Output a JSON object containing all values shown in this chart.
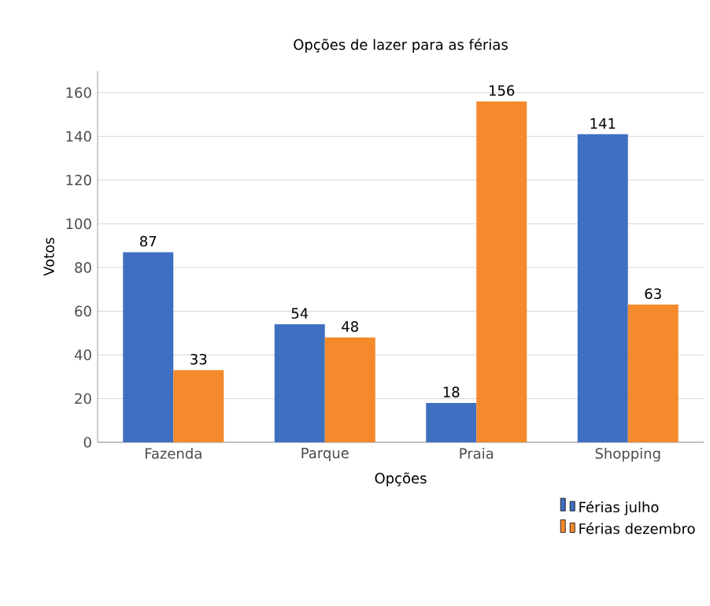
{
  "chart_data": {
    "type": "bar",
    "title": "Opções de lazer para as férias",
    "xlabel": "Opções",
    "ylabel": "Votos",
    "categories": [
      "Fazenda",
      "Parque",
      "Praia",
      "Shopping"
    ],
    "series": [
      {
        "name": "Férias julho",
        "color": "#3f6fc0",
        "values": [
          87,
          54,
          18,
          141
        ]
      },
      {
        "name": "Férias dezembro",
        "color": "#f58a2c",
        "values": [
          33,
          48,
          156,
          63
        ]
      }
    ],
    "ylim": [
      0,
      170
    ],
    "yticks": [
      0,
      20,
      40,
      60,
      80,
      100,
      120,
      140,
      160
    ],
    "grid": "y",
    "legend": "bottom right",
    "data_labels": true
  }
}
